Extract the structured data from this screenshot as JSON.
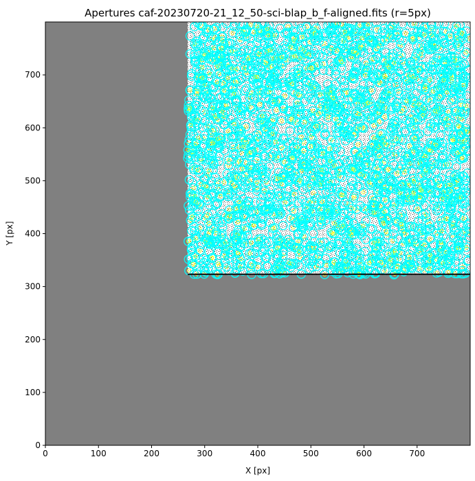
{
  "chart_data": {
    "type": "image",
    "title": "Apertures caf-20230720-21_12_50-sci-blap_b_f-aligned.fits (r=5px)",
    "xlabel": "X [px]",
    "ylabel": "Y [px]",
    "xlim": [
      0,
      799
    ],
    "ylim": [
      0,
      799
    ],
    "xticks": [
      0,
      100,
      200,
      300,
      400,
      500,
      600,
      700
    ],
    "yticks": [
      0,
      100,
      200,
      300,
      400,
      500,
      600,
      700
    ],
    "image": {
      "background_color": "#808080",
      "data_region": {
        "x": [
          268,
          799
        ],
        "y": [
          322,
          799
        ]
      },
      "colormap": "greyscale",
      "aperture_radius_px": 5,
      "aperture_color": "#00ffff",
      "annulus_color": "#ffff00"
    },
    "grid": false,
    "legend": "none"
  }
}
